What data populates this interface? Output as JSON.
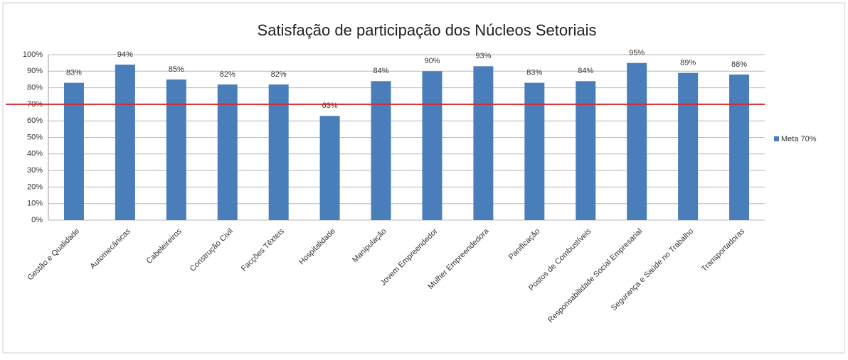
{
  "chart_data": {
    "type": "bar",
    "title": "Satisfação de participação dos Núcleos Setoriais",
    "categories": [
      "Gestão e Qualidade",
      "Automecânicas",
      "Cabeleireiros",
      "Construção Civil",
      "Facções Têxteis",
      "Hospitalidade",
      "Manipulação",
      "Jovem Empreendedor",
      "Mulher Empreendedora",
      "Panificação",
      "Postos de Combustíveis",
      "Responsabilidade Social Empresarial",
      "Segurança e Saúde no Trabalho",
      "Transportadoras"
    ],
    "series": [
      {
        "name": "Meta 70%",
        "color": "#4a7ebb",
        "values": [
          83,
          94,
          85,
          82,
          82,
          63,
          84,
          90,
          93,
          83,
          84,
          95,
          89,
          88
        ],
        "value_labels": [
          "83%",
          "94%",
          "85%",
          "82%",
          "82%",
          "63%",
          "84%",
          "90%",
          "93%",
          "83%",
          "84%",
          "95%",
          "89%",
          "88%"
        ]
      }
    ],
    "reference_line": {
      "value": 70,
      "color": "#d9262b"
    },
    "ylim": [
      0,
      100
    ],
    "yticks": [
      {
        "value": 0,
        "label": "0%"
      },
      {
        "value": 10,
        "label": "10%"
      },
      {
        "value": 20,
        "label": "20%"
      },
      {
        "value": 30,
        "label": "30%"
      },
      {
        "value": 40,
        "label": "40%"
      },
      {
        "value": 50,
        "label": "50%"
      },
      {
        "value": 60,
        "label": "60%"
      },
      {
        "value": 70,
        "label": "70%"
      },
      {
        "value": 80,
        "label": "80%"
      },
      {
        "value": 90,
        "label": "90%"
      },
      {
        "value": 100,
        "label": "100%"
      }
    ],
    "grid": true,
    "legend": "right"
  }
}
